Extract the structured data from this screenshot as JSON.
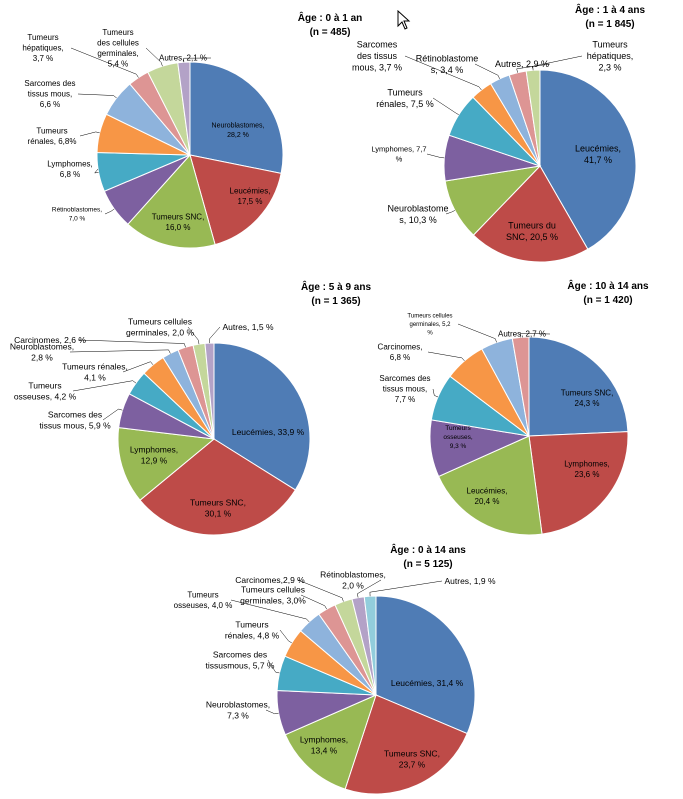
{
  "chart_data": [
    {
      "type": "pie",
      "title": "Âge : 0 à 1 an",
      "subtitle": "(n = 485)",
      "slices": [
        {
          "label": "Neuroblastomes,",
          "value_label": "28,2 %",
          "value": 28.2,
          "color": "#4F7CB5"
        },
        {
          "label": "Leucémies,",
          "value_label": "17,5 %",
          "value": 17.5,
          "color": "#BE4B48"
        },
        {
          "label": "Tumeurs SNC,",
          "value_label": "16,0 %",
          "value": 16.0,
          "color": "#98B954"
        },
        {
          "label": "Rétinoblastomes,",
          "value_label": "7,0 %",
          "value": 7.0,
          "color": "#7D60A0"
        },
        {
          "label": "Lymphomes,",
          "value_label": "6,8 %",
          "value": 6.8,
          "color": "#46AAC5"
        },
        {
          "label": "Tumeurs rénales,",
          "value_label": "6,8%",
          "value": 6.8,
          "color": "#F79646"
        },
        {
          "label": "Sarcomes des tissus mous,",
          "value_label": "6,6 %",
          "value": 6.6,
          "color": "#8EB3DC"
        },
        {
          "label": "Tumeurs hépatiques,",
          "value_label": "3,7 %",
          "value": 3.7,
          "color": "#DD9594"
        },
        {
          "label": "Tumeurs des cellules germinales,",
          "value_label": "5,4 %",
          "value": 5.4,
          "color": "#C4D79B"
        },
        {
          "label": "Autres,",
          "value_label": "2,1 %",
          "value": 2.1,
          "color": "#B3A2C7"
        }
      ]
    },
    {
      "type": "pie",
      "title": "Âge : 1 à 4 ans",
      "subtitle": "(n = 1 845)",
      "slices": [
        {
          "label": "Leucémies,",
          "value_label": "41,7 %",
          "value": 41.7,
          "color": "#4F7CB5"
        },
        {
          "label": "Tumeurs du SNC,",
          "value_label": "20,5 %",
          "value": 20.5,
          "color": "#BE4B48"
        },
        {
          "label": "Neuroblastomes,",
          "value_label": "10,3 %",
          "value": 10.3,
          "color": "#98B954"
        },
        {
          "label": "Lymphomes,",
          "value_label": "7,7 %",
          "value": 7.7,
          "color": "#7D60A0"
        },
        {
          "label": "Tumeurs rénales,",
          "value_label": "7,5 %",
          "value": 7.5,
          "color": "#46AAC5"
        },
        {
          "label": "Sarcomes des tissus mous,",
          "value_label": "3,7 %",
          "value": 3.7,
          "color": "#F79646"
        },
        {
          "label": "Rétinoblastomes,",
          "value_label": "3,4 %",
          "value": 3.4,
          "color": "#8EB3DC"
        },
        {
          "label": "Autres,",
          "value_label": "2,9 %",
          "value": 2.9,
          "color": "#DD9594"
        },
        {
          "label": "Tumeurs hépatiques,",
          "value_label": "2,3 %",
          "value": 2.3,
          "color": "#C4D79B"
        }
      ]
    },
    {
      "type": "pie",
      "title": "Âge : 5 à 9 ans",
      "subtitle": "(n = 1 365)",
      "slices": [
        {
          "label": "Leucémies,",
          "value_label": "33,9 %",
          "value": 33.9,
          "color": "#4F7CB5"
        },
        {
          "label": "Tumeurs SNC,",
          "value_label": "30,1 %",
          "value": 30.1,
          "color": "#BE4B48"
        },
        {
          "label": "Lymphomes,",
          "value_label": "12,9 %",
          "value": 12.9,
          "color": "#98B954"
        },
        {
          "label": "Sarcomes des tissus mous,",
          "value_label": "5,9 %",
          "value": 5.9,
          "color": "#7D60A0"
        },
        {
          "label": "Tumeurs osseuses,",
          "value_label": "4,2 %",
          "value": 4.2,
          "color": "#46AAC5"
        },
        {
          "label": "Tumeurs rénales,",
          "value_label": "4,1 %",
          "value": 4.1,
          "color": "#F79646"
        },
        {
          "label": "Neuroblastomes,",
          "value_label": "2,8 %",
          "value": 2.8,
          "color": "#8EB3DC"
        },
        {
          "label": "Carcinomes,",
          "value_label": "2,6 %",
          "value": 2.6,
          "color": "#DD9594"
        },
        {
          "label": "Tumeurs cellules germinales,",
          "value_label": "2,0 %",
          "value": 2.0,
          "color": "#C4D79B"
        },
        {
          "label": "Autres,",
          "value_label": "1,5 %",
          "value": 1.5,
          "color": "#B3A2C7"
        }
      ]
    },
    {
      "type": "pie",
      "title": "Âge : 10 à 14 ans",
      "subtitle": "(n = 1 420)",
      "slices": [
        {
          "label": "Tumeurs SNC,",
          "value_label": "24,3 %",
          "value": 24.3,
          "color": "#4F7CB5"
        },
        {
          "label": "Lymphomes,",
          "value_label": "23,6 %",
          "value": 23.6,
          "color": "#BE4B48"
        },
        {
          "label": "Leucémies,",
          "value_label": "20,4 %",
          "value": 20.4,
          "color": "#98B954"
        },
        {
          "label": "Tumeurs osseuses,",
          "value_label": "9,3 %",
          "value": 9.3,
          "color": "#7D60A0"
        },
        {
          "label": "Sarcomes des tissus mous,",
          "value_label": "7,7 %",
          "value": 7.7,
          "color": "#46AAC5"
        },
        {
          "label": "Carcinomes,",
          "value_label": "6,8 %",
          "value": 6.8,
          "color": "#F79646"
        },
        {
          "label": "Tumeurs cellules germinales,",
          "value_label": "5,2 %",
          "value": 5.2,
          "color": "#8EB3DC"
        },
        {
          "label": "Autres,",
          "value_label": "2,7 %",
          "value": 2.7,
          "color": "#DD9594"
        }
      ]
    },
    {
      "type": "pie",
      "title": "Âge : 0 à 14 ans",
      "subtitle": "(n = 5 125)",
      "slices": [
        {
          "label": "Leucémies,",
          "value_label": "31,4 %",
          "value": 31.4,
          "color": "#4F7CB5"
        },
        {
          "label": "Tumeurs SNC,",
          "value_label": "23,7 %",
          "value": 23.7,
          "color": "#BE4B48"
        },
        {
          "label": "Lymphomes,",
          "value_label": "13,4 %",
          "value": 13.4,
          "color": "#98B954"
        },
        {
          "label": "Neuroblastomes,",
          "value_label": "7,3 %",
          "value": 7.3,
          "color": "#7D60A0"
        },
        {
          "label": "Sarcomes des tissusmous,",
          "value_label": "5,7 %",
          "value": 5.7,
          "color": "#46AAC5"
        },
        {
          "label": "Tumeurs rénales,",
          "value_label": "4,8 %",
          "value": 4.8,
          "color": "#F79646"
        },
        {
          "label": "Tumeurs osseuses,",
          "value_label": "4,0 %",
          "value": 4.0,
          "color": "#8EB3DC"
        },
        {
          "label": "Tumeurs cellules germinales,",
          "value_label": "3,0%",
          "value": 3.0,
          "color": "#DD9594"
        },
        {
          "label": "Carcinomes,",
          "value_label": "2,9 %",
          "value": 2.9,
          "color": "#C4D79B"
        },
        {
          "label": "Rétinoblastomes,",
          "value_label": "2,0 %",
          "value": 2.0,
          "color": "#B3A2C7"
        },
        {
          "label": "Autres,",
          "value_label": "1,9 %",
          "value": 1.9,
          "color": "#92CDDC"
        }
      ]
    }
  ]
}
